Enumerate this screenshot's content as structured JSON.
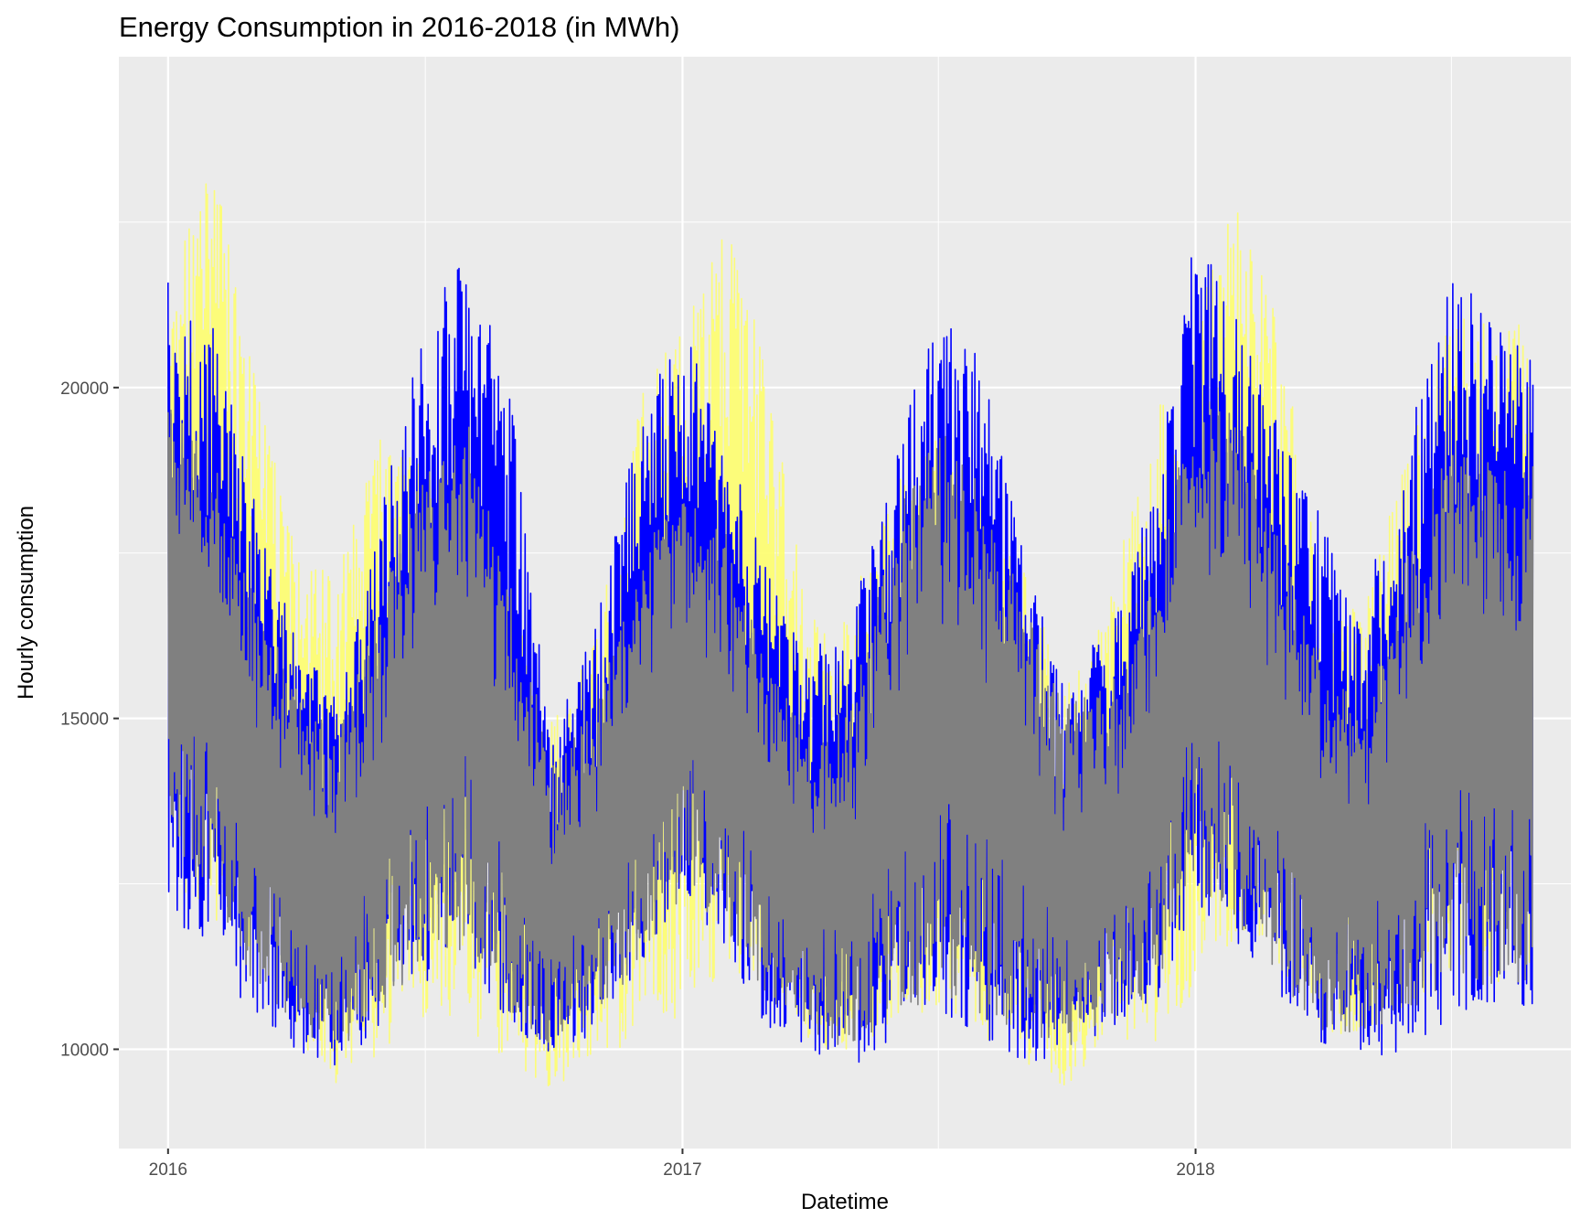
{
  "chart_data": {
    "type": "line",
    "title": "Energy Consumption in 2016-2018 (in MWh)",
    "xlabel": "Datetime",
    "ylabel": "Hourly consumption",
    "x_ticks": [
      "2016",
      "2017",
      "2018"
    ],
    "y_ticks": [
      10000,
      15000,
      20000
    ],
    "xlim": [
      "2015-11-27",
      "2018-09-25"
    ],
    "ylim": [
      8500,
      25000
    ],
    "grid": true,
    "legend": "none",
    "panel_background": "#EBEBEB",
    "grid_color": "#FFFFFF",
    "x": [
      "2016-01-01",
      "2016-02-01",
      "2016-03-01",
      "2016-04-01",
      "2016-05-01",
      "2016-06-01",
      "2016-07-01",
      "2016-08-01",
      "2016-09-01",
      "2016-10-01",
      "2016-11-01",
      "2016-12-01",
      "2017-01-01",
      "2017-02-01",
      "2017-03-01",
      "2017-04-01",
      "2017-05-01",
      "2017-06-01",
      "2017-07-01",
      "2017-08-01",
      "2017-09-01",
      "2017-10-01",
      "2017-11-01",
      "2017-12-01",
      "2018-01-01",
      "2018-02-01",
      "2018-03-01",
      "2018-04-01",
      "2018-05-01",
      "2018-06-01",
      "2018-07-01",
      "2018-08-01"
    ],
    "series": [
      {
        "color": "#FFFF66",
        "opacity": 0.85,
        "values_high": [
          21500,
          23500,
          20500,
          17500,
          17200,
          19500,
          19000,
          19800,
          17200,
          15000,
          16200,
          19800,
          21000,
          22500,
          20500,
          16500,
          16800,
          18500,
          19800,
          18500,
          17200,
          15500,
          16800,
          19500,
          21000,
          23000,
          21000,
          17000,
          16800,
          19000,
          21200,
          21000
        ],
        "values_low": [
          12500,
          12000,
          11500,
          10200,
          9300,
          10000,
          10500,
          10300,
          9800,
          9400,
          9800,
          10200,
          10500,
          11000,
          11000,
          10000,
          10000,
          10300,
          10500,
          10200,
          9800,
          9300,
          10200,
          10000,
          10800,
          11800,
          11200,
          10300,
          10100,
          10500,
          11000,
          11000
        ]
      },
      {
        "color": "#0000FF",
        "opacity": 1,
        "values_high": [
          22000,
          21000,
          18500,
          16500,
          15200,
          18200,
          21000,
          22200,
          19800,
          14800,
          16500,
          19500,
          21000,
          19200,
          17500,
          16000,
          16500,
          19200,
          21200,
          20500,
          17500,
          15500,
          16500,
          18500,
          22500,
          21000,
          19500,
          18000,
          16800,
          19200,
          22000,
          21000
        ],
        "values_low": [
          12000,
          11500,
          10300,
          10000,
          9700,
          10300,
          11000,
          11200,
          10300,
          9900,
          10100,
          11200,
          12300,
          11500,
          10300,
          10000,
          9700,
          10200,
          10500,
          10000,
          9800,
          9900,
          10200,
          10500,
          12200,
          11500,
          10700,
          10100,
          9800,
          10000,
          10400,
          10600
        ]
      },
      {
        "color": "#808080",
        "opacity": 1,
        "values_high": [
          19800,
          19000,
          17000,
          15500,
          14800,
          17000,
          18800,
          19500,
          17000,
          14300,
          15200,
          17500,
          18500,
          17800,
          15800,
          14800,
          15200,
          18000,
          19500,
          18500,
          16800,
          15200,
          15500,
          17000,
          20000,
          19500,
          17800,
          15800,
          15200,
          17500,
          19200,
          19000
        ],
        "values_low": [
          12800,
          12500,
          11000,
          10300,
          10000,
          10500,
          11300,
          11500,
          10500,
          10000,
          10300,
          11300,
          12300,
          11800,
          10800,
          10200,
          10000,
          10500,
          10800,
          10500,
          10200,
          9900,
          10500,
          10800,
          12500,
          11800,
          11000,
          10300,
          10200,
          10500,
          10900,
          11000
        ]
      }
    ]
  }
}
